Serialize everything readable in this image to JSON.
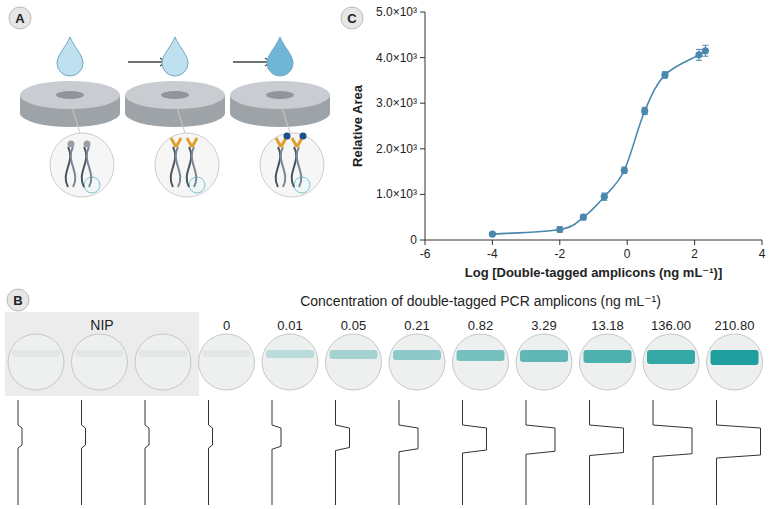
{
  "panel_letters": [
    "A",
    "B",
    "C"
  ],
  "panel_b": {
    "title": "Concentration of double-tagged PCR amplicons (ng mL⁻¹)",
    "nip_label": "NIP",
    "labels": [
      "0",
      "0.01",
      "0.05",
      "0.21",
      "0.82",
      "3.29",
      "13.18",
      "136.00",
      "210.80"
    ]
  },
  "chart_data": {
    "type": "scatter",
    "x_label": "Log [Double-tagged amplicons (ng mL⁻¹)]",
    "y_label": "Relative Area",
    "x": [
      -4,
      -2,
      -1.3,
      -0.68,
      -0.086,
      0.52,
      1.12,
      2.13,
      2.32
    ],
    "series": [
      {
        "color": "#4a87ad",
        "marker": "circle",
        "line_style": "smooth",
        "values": [
          130,
          230,
          500,
          950,
          1530,
          2830,
          3620,
          4060,
          4150
        ],
        "errors": [
          20,
          60,
          60,
          80,
          70,
          80,
          70,
          120,
          120
        ]
      }
    ],
    "xlim": [
      -6,
      4
    ],
    "xticks": [
      -6,
      -4,
      -2,
      0,
      2,
      4
    ],
    "ylim": [
      0,
      5000
    ],
    "yticks": [
      0,
      {
        "value": 1000,
        "label": "1.0×10³"
      },
      {
        "value": 2000,
        "label": "2.0×10³"
      },
      {
        "value": 3000,
        "label": "3.0×10³"
      },
      {
        "value": 4000,
        "label": "4.0×10³"
      },
      {
        "value": 5000,
        "label": "5.0×10³"
      }
    ]
  }
}
